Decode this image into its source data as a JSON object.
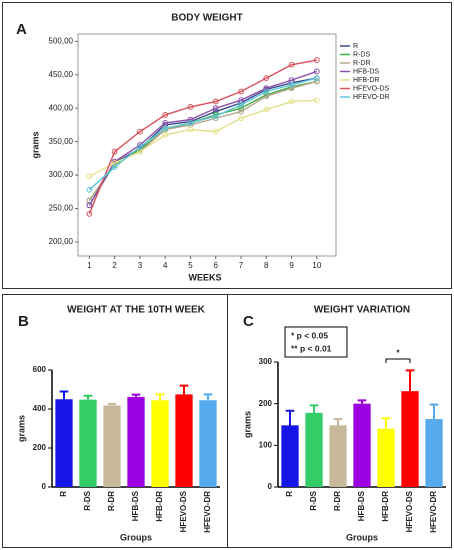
{
  "chart_data": [
    {
      "type": "line",
      "panel": "A",
      "title": "BODY WEIGHT",
      "xlabel": "WEEKS",
      "ylabel": "grams",
      "x": [
        1,
        2,
        3,
        4,
        5,
        6,
        7,
        8,
        9,
        10
      ],
      "xlim": [
        0.55,
        10.6
      ],
      "xticks": [
        1,
        2,
        3,
        4,
        5,
        6,
        7,
        8,
        9,
        10
      ],
      "ylim": [
        185,
        505
      ],
      "yticks": [
        {
          "value": 200,
          "label": "200,00"
        },
        {
          "value": 250,
          "label": "250,00"
        },
        {
          "value": 300,
          "label": "300,00"
        },
        {
          "value": 350,
          "label": "350,00"
        },
        {
          "value": 400,
          "label": "400,00"
        },
        {
          "value": 450,
          "label": "450,00"
        },
        {
          "value": 500,
          "label": "500,00"
        }
      ],
      "legend": "right",
      "series": [
        {
          "name": "R",
          "color": "#3b4a8c",
          "values": [
            255,
            318,
            340,
            375,
            380,
            395,
            408,
            428,
            438,
            445
          ]
        },
        {
          "name": "R-DS",
          "color": "#3fae49",
          "values": [
            262,
            315,
            338,
            368,
            378,
            390,
            400,
            420,
            432,
            440
          ]
        },
        {
          "name": "R-DR",
          "color": "#b5a58a",
          "values": [
            262,
            318,
            335,
            368,
            375,
            385,
            395,
            418,
            430,
            440
          ]
        },
        {
          "name": "HFB-DS",
          "color": "#8a4fa8",
          "values": [
            255,
            320,
            345,
            378,
            383,
            400,
            412,
            430,
            442,
            455
          ]
        },
        {
          "name": "HFB-DR",
          "color": "#e3e08a",
          "values": [
            298,
            318,
            335,
            360,
            368,
            365,
            385,
            398,
            410,
            412
          ]
        },
        {
          "name": "HFEVO-DS",
          "color": "#d9505a",
          "values": [
            242,
            335,
            365,
            390,
            402,
            410,
            425,
            445,
            465,
            472
          ]
        },
        {
          "name": "HFEVO-DR",
          "color": "#5cc8d8",
          "values": [
            278,
            312,
            342,
            370,
            378,
            388,
            405,
            425,
            435,
            445
          ]
        }
      ]
    },
    {
      "type": "bar",
      "panel": "B",
      "title": "WEIGHT AT THE 10TH WEEK",
      "xlabel": "Groups",
      "ylabel": "grams",
      "categories": [
        "R",
        "R-DS",
        "R-DR",
        "HFB-DS",
        "HFB-DR",
        "HFEVO-DS",
        "HFEVO-DR"
      ],
      "values": [
        450,
        448,
        418,
        462,
        445,
        475,
        445
      ],
      "errors": [
        40,
        20,
        8,
        12,
        30,
        45,
        30
      ],
      "colors": [
        "#1515e8",
        "#33cc66",
        "#c8b89a",
        "#9b00e0",
        "#ffff00",
        "#ff0000",
        "#55aaee"
      ],
      "ylim": [
        0,
        600
      ],
      "yticks": [
        0,
        200,
        400,
        600
      ]
    },
    {
      "type": "bar",
      "panel": "C",
      "title": "WEIGHT VARIATION",
      "xlabel": "Groups",
      "ylabel": "grams",
      "categories": [
        "R",
        "R-DS",
        "R-DR",
        "HFB-DS",
        "HFB-DR",
        "HFEVO-DS",
        "HFEVO-DR"
      ],
      "values": [
        148,
        178,
        148,
        200,
        140,
        230,
        163
      ],
      "errors": [
        35,
        18,
        15,
        8,
        25,
        50,
        35
      ],
      "colors": [
        "#1515e8",
        "#33cc66",
        "#c8b89a",
        "#9b00e0",
        "#ffff00",
        "#ff0000",
        "#55aaee"
      ],
      "ylim": [
        0,
        300
      ],
      "yticks": [
        0,
        100,
        200,
        300
      ],
      "annotations": [
        "* p < 0.05",
        "** p < 0.01",
        "*"
      ]
    }
  ]
}
